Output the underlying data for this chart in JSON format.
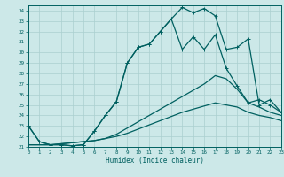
{
  "xlabel": "Humidex (Indice chaleur)",
  "xlim": [
    0,
    23
  ],
  "ylim": [
    21,
    34.5
  ],
  "yticks": [
    21,
    22,
    23,
    24,
    25,
    26,
    27,
    28,
    29,
    30,
    31,
    32,
    33,
    34
  ],
  "xticks": [
    0,
    1,
    2,
    3,
    4,
    5,
    6,
    7,
    8,
    9,
    10,
    11,
    12,
    13,
    14,
    15,
    16,
    17,
    18,
    19,
    20,
    21,
    22,
    23
  ],
  "bg_color": "#cce8e8",
  "grid_color": "#b0d8d8",
  "line_color": "#006060",
  "line1_x": [
    0,
    1,
    2,
    3,
    4,
    5,
    6,
    7,
    8,
    9,
    10,
    11,
    12,
    13,
    14,
    15,
    16,
    17,
    18,
    19,
    20,
    21,
    22,
    23
  ],
  "line1_y": [
    23.0,
    21.5,
    21.2,
    21.2,
    21.1,
    21.2,
    22.5,
    24.0,
    25.3,
    29.0,
    30.5,
    30.8,
    32.0,
    33.2,
    34.3,
    33.8,
    34.2,
    33.5,
    30.3,
    30.5,
    31.3,
    25.0,
    25.5,
    24.3
  ],
  "line1_marker_x": [
    0,
    1,
    2,
    3,
    4,
    5,
    6,
    7,
    8,
    9,
    10,
    11,
    12,
    13,
    14,
    15,
    16,
    17,
    18,
    19,
    20,
    21,
    22,
    23
  ],
  "line2_x": [
    0,
    1,
    2,
    3,
    4,
    5,
    6,
    7,
    8,
    9,
    10,
    11,
    12,
    13,
    14,
    15,
    16,
    17,
    18,
    19,
    20,
    21,
    22,
    23
  ],
  "line2_y": [
    23.0,
    21.5,
    21.2,
    21.2,
    21.1,
    21.2,
    22.5,
    24.0,
    25.3,
    29.0,
    30.5,
    30.8,
    32.0,
    33.2,
    30.3,
    31.5,
    30.3,
    31.7,
    28.5,
    26.8,
    25.2,
    25.5,
    25.0,
    24.3
  ],
  "line2_marker_x": [
    0,
    1,
    2,
    3,
    4,
    5,
    6,
    7,
    8,
    9,
    10,
    11,
    12,
    13,
    14,
    15,
    16,
    17,
    18,
    19,
    20,
    21,
    22,
    23
  ],
  "line3_x": [
    0,
    1,
    2,
    3,
    4,
    5,
    6,
    7,
    8,
    9,
    10,
    11,
    12,
    13,
    14,
    15,
    16,
    17,
    18,
    19,
    20,
    21,
    22,
    23
  ],
  "line3_y": [
    21.2,
    21.2,
    21.2,
    21.3,
    21.4,
    21.5,
    21.6,
    21.8,
    22.2,
    22.8,
    23.4,
    24.0,
    24.6,
    25.2,
    25.8,
    26.4,
    27.0,
    27.8,
    27.5,
    26.5,
    25.2,
    24.8,
    24.3,
    24.0
  ],
  "line4_x": [
    0,
    1,
    2,
    3,
    4,
    5,
    6,
    7,
    8,
    9,
    10,
    11,
    12,
    13,
    14,
    15,
    16,
    17,
    18,
    19,
    20,
    21,
    22,
    23
  ],
  "line4_y": [
    21.2,
    21.2,
    21.2,
    21.3,
    21.4,
    21.5,
    21.6,
    21.8,
    22.0,
    22.3,
    22.7,
    23.1,
    23.5,
    23.9,
    24.3,
    24.6,
    24.9,
    25.2,
    25.0,
    24.8,
    24.3,
    24.0,
    23.8,
    23.5
  ]
}
